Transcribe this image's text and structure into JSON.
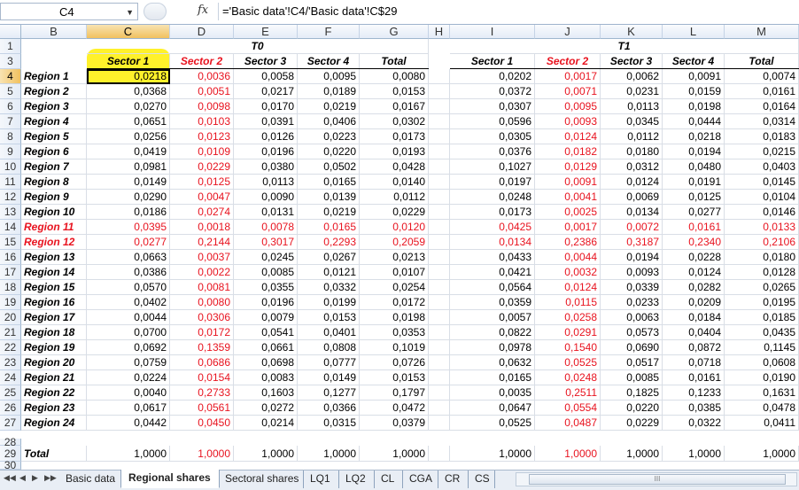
{
  "namebox": "C4",
  "fx_label": "fx",
  "formula": "='Basic data'!C4/'Basic data'!C$29",
  "columns": [
    "B",
    "C",
    "D",
    "E",
    "F",
    "G",
    "H",
    "I",
    "J",
    "K",
    "L",
    "M"
  ],
  "group_t0": "T0",
  "group_t1": "T1",
  "headers_t0": [
    "Sector 1",
    "Sector 2",
    "Sector 3",
    "Sector 4",
    "Total"
  ],
  "headers_t1": [
    "Sector 1",
    "Sector 2",
    "Sector 3",
    "Sector 4",
    "Total"
  ],
  "rows": [
    {
      "n": "4",
      "label": "Region 1",
      "t0": [
        "0,0218",
        "0,0036",
        "0,0058",
        "0,0095",
        "0,0080"
      ],
      "t1": [
        "0,0202",
        "0,0017",
        "0,0062",
        "0,0091",
        "0,0074"
      ]
    },
    {
      "n": "5",
      "label": "Region 2",
      "t0": [
        "0,0368",
        "0,0051",
        "0,0217",
        "0,0189",
        "0,0153"
      ],
      "t1": [
        "0,0372",
        "0,0071",
        "0,0231",
        "0,0159",
        "0,0161"
      ]
    },
    {
      "n": "6",
      "label": "Region 3",
      "t0": [
        "0,0270",
        "0,0098",
        "0,0170",
        "0,0219",
        "0,0167"
      ],
      "t1": [
        "0,0307",
        "0,0095",
        "0,0113",
        "0,0198",
        "0,0164"
      ]
    },
    {
      "n": "7",
      "label": "Region 4",
      "t0": [
        "0,0651",
        "0,0103",
        "0,0391",
        "0,0406",
        "0,0302"
      ],
      "t1": [
        "0,0596",
        "0,0093",
        "0,0345",
        "0,0444",
        "0,0314"
      ]
    },
    {
      "n": "8",
      "label": "Region 5",
      "t0": [
        "0,0256",
        "0,0123",
        "0,0126",
        "0,0223",
        "0,0173"
      ],
      "t1": [
        "0,0305",
        "0,0124",
        "0,0112",
        "0,0218",
        "0,0183"
      ]
    },
    {
      "n": "9",
      "label": "Region 6",
      "t0": [
        "0,0419",
        "0,0109",
        "0,0196",
        "0,0220",
        "0,0193"
      ],
      "t1": [
        "0,0376",
        "0,0182",
        "0,0180",
        "0,0194",
        "0,0215"
      ]
    },
    {
      "n": "10",
      "label": "Region 7",
      "t0": [
        "0,0981",
        "0,0229",
        "0,0380",
        "0,0502",
        "0,0428"
      ],
      "t1": [
        "0,1027",
        "0,0129",
        "0,0312",
        "0,0480",
        "0,0403"
      ]
    },
    {
      "n": "11",
      "label": "Region 8",
      "t0": [
        "0,0149",
        "0,0125",
        "0,0113",
        "0,0165",
        "0,0140"
      ],
      "t1": [
        "0,0197",
        "0,0091",
        "0,0124",
        "0,0191",
        "0,0145"
      ]
    },
    {
      "n": "12",
      "label": "Region 9",
      "t0": [
        "0,0290",
        "0,0047",
        "0,0090",
        "0,0139",
        "0,0112"
      ],
      "t1": [
        "0,0248",
        "0,0041",
        "0,0069",
        "0,0125",
        "0,0104"
      ]
    },
    {
      "n": "13",
      "label": "Region 10",
      "t0": [
        "0,0186",
        "0,0274",
        "0,0131",
        "0,0219",
        "0,0229"
      ],
      "t1": [
        "0,0173",
        "0,0025",
        "0,0134",
        "0,0277",
        "0,0146"
      ]
    },
    {
      "n": "14",
      "label": "Region 11",
      "red": true,
      "t0": [
        "0,0395",
        "0,0018",
        "0,0078",
        "0,0165",
        "0,0120"
      ],
      "t1": [
        "0,0425",
        "0,0017",
        "0,0072",
        "0,0161",
        "0,0133"
      ]
    },
    {
      "n": "15",
      "label": "Region 12",
      "red": true,
      "t0": [
        "0,0277",
        "0,2144",
        "0,3017",
        "0,2293",
        "0,2059"
      ],
      "t1": [
        "0,0134",
        "0,2386",
        "0,3187",
        "0,2340",
        "0,2106"
      ]
    },
    {
      "n": "16",
      "label": "Region 13",
      "t0": [
        "0,0663",
        "0,0037",
        "0,0245",
        "0,0267",
        "0,0213"
      ],
      "t1": [
        "0,0433",
        "0,0044",
        "0,0194",
        "0,0228",
        "0,0180"
      ]
    },
    {
      "n": "17",
      "label": "Region 14",
      "t0": [
        "0,0386",
        "0,0022",
        "0,0085",
        "0,0121",
        "0,0107"
      ],
      "t1": [
        "0,0421",
        "0,0032",
        "0,0093",
        "0,0124",
        "0,0128"
      ]
    },
    {
      "n": "18",
      "label": "Region 15",
      "t0": [
        "0,0570",
        "0,0081",
        "0,0355",
        "0,0332",
        "0,0254"
      ],
      "t1": [
        "0,0564",
        "0,0124",
        "0,0339",
        "0,0282",
        "0,0265"
      ]
    },
    {
      "n": "19",
      "label": "Region 16",
      "t0": [
        "0,0402",
        "0,0080",
        "0,0196",
        "0,0199",
        "0,0172"
      ],
      "t1": [
        "0,0359",
        "0,0115",
        "0,0233",
        "0,0209",
        "0,0195"
      ]
    },
    {
      "n": "20",
      "label": "Region 17",
      "t0": [
        "0,0044",
        "0,0306",
        "0,0079",
        "0,0153",
        "0,0198"
      ],
      "t1": [
        "0,0057",
        "0,0258",
        "0,0063",
        "0,0184",
        "0,0185"
      ]
    },
    {
      "n": "21",
      "label": "Region 18",
      "t0": [
        "0,0700",
        "0,0172",
        "0,0541",
        "0,0401",
        "0,0353"
      ],
      "t1": [
        "0,0822",
        "0,0291",
        "0,0573",
        "0,0404",
        "0,0435"
      ]
    },
    {
      "n": "22",
      "label": "Region 19",
      "t0": [
        "0,0692",
        "0,1359",
        "0,0661",
        "0,0808",
        "0,1019"
      ],
      "t1": [
        "0,0978",
        "0,1540",
        "0,0690",
        "0,0872",
        "0,1145"
      ]
    },
    {
      "n": "23",
      "label": "Region 20",
      "t0": [
        "0,0759",
        "0,0686",
        "0,0698",
        "0,0777",
        "0,0726"
      ],
      "t1": [
        "0,0632",
        "0,0525",
        "0,0517",
        "0,0718",
        "0,0608"
      ]
    },
    {
      "n": "24",
      "label": "Region 21",
      "t0": [
        "0,0224",
        "0,0154",
        "0,0083",
        "0,0149",
        "0,0153"
      ],
      "t1": [
        "0,0165",
        "0,0248",
        "0,0085",
        "0,0161",
        "0,0190"
      ]
    },
    {
      "n": "25",
      "label": "Region 22",
      "t0": [
        "0,0040",
        "0,2733",
        "0,1603",
        "0,1277",
        "0,1797"
      ],
      "t1": [
        "0,0035",
        "0,2511",
        "0,1825",
        "0,1233",
        "0,1631"
      ]
    },
    {
      "n": "26",
      "label": "Region 23",
      "t0": [
        "0,0617",
        "0,0561",
        "0,0272",
        "0,0366",
        "0,0472"
      ],
      "t1": [
        "0,0647",
        "0,0554",
        "0,0220",
        "0,0385",
        "0,0478"
      ]
    },
    {
      "n": "27",
      "label": "Region 24",
      "t0": [
        "0,0442",
        "0,0450",
        "0,0214",
        "0,0315",
        "0,0379"
      ],
      "t1": [
        "0,0525",
        "0,0487",
        "0,0229",
        "0,0322",
        "0,0411"
      ]
    }
  ],
  "total_row": {
    "n": "29",
    "label": "Total",
    "t0": [
      "1,0000",
      "1,0000",
      "1,0000",
      "1,0000",
      "1,0000"
    ],
    "t1": [
      "1,0000",
      "1,0000",
      "1,0000",
      "1,0000",
      "1,0000"
    ]
  },
  "row_numbers": {
    "r1": "1",
    "r3": "3",
    "r28": "28",
    "r30": "30"
  },
  "tabs": [
    "Basic data",
    "Regional shares",
    "Sectoral shares",
    "LQ1",
    "LQ2",
    "CL",
    "CGA",
    "CR",
    "CS"
  ],
  "active_tab": "Regional shares",
  "colors": {
    "highlight": "#fff12b",
    "red": "#e8131f"
  }
}
